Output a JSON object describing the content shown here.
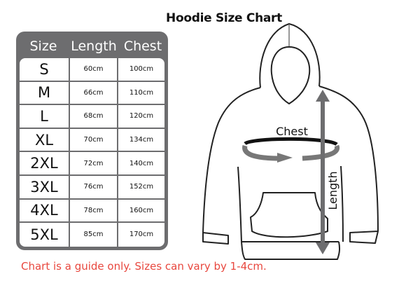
{
  "title": "Hoodie Size Chart",
  "table": {
    "headers": [
      "Size",
      "Length",
      "Chest"
    ],
    "rows": [
      {
        "size": "S",
        "length": "60cm",
        "chest": "100cm"
      },
      {
        "size": "M",
        "length": "66cm",
        "chest": "110cm"
      },
      {
        "size": "L",
        "length": "68cm",
        "chest": "120cm"
      },
      {
        "size": "XL",
        "length": "70cm",
        "chest": "134cm"
      },
      {
        "size": "2XL",
        "length": "72cm",
        "chest": "140cm"
      },
      {
        "size": "3XL",
        "length": "76cm",
        "chest": "152cm"
      },
      {
        "size": "4XL",
        "length": "78cm",
        "chest": "160cm"
      },
      {
        "size": "5XL",
        "length": "85cm",
        "chest": "170cm"
      }
    ]
  },
  "diagram": {
    "chest_label": "Chest",
    "length_label": "Length"
  },
  "note": "Chart is a guide only. Sizes can vary by 1-4cm.",
  "colors": {
    "panel": "#6d6d6f",
    "note": "#e8473e",
    "arrow": "#707070"
  }
}
